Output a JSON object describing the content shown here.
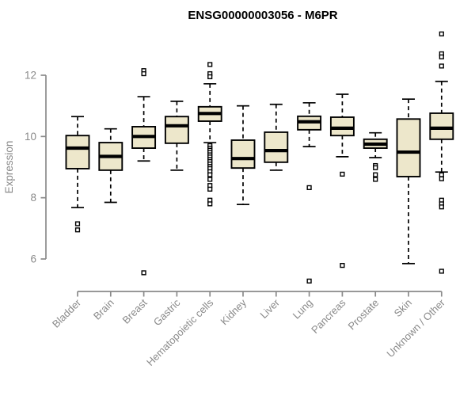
{
  "chart_data": {
    "type": "boxplot",
    "title": "ENSG00000003056 - M6PR",
    "xlabel": "",
    "ylabel": "Expression",
    "yticks": [
      6,
      8,
      10,
      12
    ],
    "ylim": [
      5.1,
      13.5
    ],
    "grid": false,
    "legend": "none",
    "categories": [
      "Bladder",
      "Brain",
      "Breast",
      "Gastric",
      "Hematopoietic cells",
      "Kidney",
      "Liver",
      "Lung",
      "Pancreas",
      "Prostate",
      "Skin",
      "Unknown / Other"
    ],
    "series": [
      {
        "name": "Bladder",
        "slug": "bladder",
        "whisker_low": 7.68,
        "q1": 8.95,
        "median": 9.62,
        "q3": 10.03,
        "whisker_high": 10.65,
        "outliers": [
          7.15,
          6.95
        ]
      },
      {
        "name": "Brain",
        "slug": "brain",
        "whisker_low": 7.85,
        "q1": 8.9,
        "median": 9.35,
        "q3": 9.8,
        "whisker_high": 10.25,
        "outliers": []
      },
      {
        "name": "Breast",
        "slug": "breast",
        "whisker_low": 9.2,
        "q1": 9.62,
        "median": 10.0,
        "q3": 10.32,
        "whisker_high": 11.3,
        "outliers": [
          12.15,
          12.05,
          5.55
        ]
      },
      {
        "name": "Gastric",
        "slug": "gastric",
        "whisker_low": 8.9,
        "q1": 9.78,
        "median": 10.35,
        "q3": 10.65,
        "whisker_high": 11.15,
        "outliers": []
      },
      {
        "name": "Hematopoietic cells",
        "slug": "hematopoietic-cells",
        "whisker_low": 9.8,
        "q1": 10.5,
        "median": 10.75,
        "q3": 10.97,
        "whisker_high": 11.72,
        "outliers": [
          12.35,
          12.05,
          11.95,
          9.7,
          9.62,
          9.55,
          9.48,
          9.4,
          9.33,
          9.25,
          9.18,
          9.1,
          9.02,
          8.95,
          8.85,
          8.75,
          8.6,
          8.4,
          8.28,
          7.92,
          7.8
        ]
      },
      {
        "name": "Kidney",
        "slug": "kidney",
        "whisker_low": 7.78,
        "q1": 8.97,
        "median": 9.28,
        "q3": 9.88,
        "whisker_high": 11.0,
        "outliers": []
      },
      {
        "name": "Liver",
        "slug": "liver",
        "whisker_low": 8.9,
        "q1": 9.16,
        "median": 9.54,
        "q3": 10.14,
        "whisker_high": 11.05,
        "outliers": []
      },
      {
        "name": "Lung",
        "slug": "lung",
        "whisker_low": 9.67,
        "q1": 10.22,
        "median": 10.48,
        "q3": 10.66,
        "whisker_high": 11.1,
        "outliers": [
          8.33,
          5.28
        ]
      },
      {
        "name": "Pancreas",
        "slug": "pancreas",
        "whisker_low": 9.34,
        "q1": 10.03,
        "median": 10.27,
        "q3": 10.63,
        "whisker_high": 11.38,
        "outliers": [
          8.77,
          5.79
        ]
      },
      {
        "name": "Prostate",
        "slug": "prostate",
        "whisker_low": 9.31,
        "q1": 9.62,
        "median": 9.75,
        "q3": 9.91,
        "whisker_high": 10.12,
        "outliers": [
          9.05,
          8.98,
          8.75,
          8.6
        ]
      },
      {
        "name": "Skin",
        "slug": "skin",
        "whisker_low": 5.85,
        "q1": 8.69,
        "median": 9.49,
        "q3": 10.57,
        "whisker_high": 11.22,
        "outliers": []
      },
      {
        "name": "Unknown / Other",
        "slug": "unknown-other",
        "whisker_low": 8.84,
        "q1": 9.91,
        "median": 10.27,
        "q3": 10.76,
        "whisker_high": 11.8,
        "outliers": [
          13.35,
          12.7,
          12.6,
          12.3,
          8.75,
          8.62,
          7.92,
          7.8,
          7.7,
          5.6
        ]
      }
    ],
    "style": {
      "box_fill": "#EDE7CB",
      "box_stroke": "#000000",
      "median_color": "#000000",
      "outlier_shape": "open-square",
      "axis_color": "#8A8A8A",
      "tick_label_color": "#8A8A8A",
      "title_color": "#000000",
      "background": "#FFFFFF"
    }
  }
}
